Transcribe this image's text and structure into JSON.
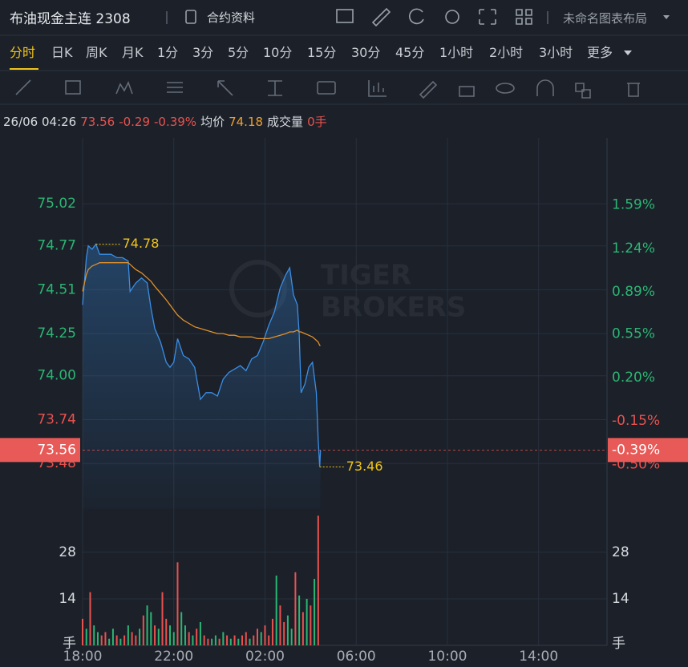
{
  "header": {
    "title": "布油现金主连 2308",
    "contract_info": "合约资料",
    "layout_name": "未命名图表布局"
  },
  "periods": [
    "分时",
    "日K",
    "周K",
    "月K",
    "1分",
    "3分",
    "5分",
    "10分",
    "15分",
    "30分",
    "45分",
    "1小时",
    "2小时",
    "3小时",
    "更多"
  ],
  "info": {
    "time": "26/06 04:26",
    "price": "73.56",
    "change": "-0.29",
    "change_pct": "-0.39%",
    "avg_label": "均价",
    "avg": "74.18",
    "volume_label": "成交量",
    "volume": "0手"
  },
  "watermark": [
    "TIGER",
    "BROKERS"
  ],
  "chart_data": [
    {
      "type": "line",
      "x": [
        "18:00",
        "18:10",
        "18:15",
        "18:25",
        "18:35",
        "18:45",
        "19:00",
        "19:15",
        "19:30",
        "19:45",
        "20:00",
        "20:05",
        "20:20",
        "20:35",
        "20:50",
        "21:00",
        "21:10",
        "21:25",
        "21:40",
        "21:50",
        "22:00",
        "22:10",
        "22:25",
        "22:40",
        "22:55",
        "23:10",
        "23:25",
        "23:40",
        "23:55",
        "00:10",
        "00:25",
        "00:40",
        "00:55",
        "01:10",
        "01:25",
        "01:40",
        "01:55",
        "02:10",
        "02:25",
        "02:40",
        "02:55",
        "03:05",
        "03:15",
        "03:25",
        "03:30",
        "03:35",
        "03:45",
        "03:55",
        "04:05",
        "04:15",
        "04:20",
        "04:24",
        "04:26"
      ],
      "series": [
        {
          "color": "#3a8ee6",
          "values": [
            74.42,
            74.7,
            74.77,
            74.75,
            74.78,
            74.72,
            74.72,
            74.72,
            74.7,
            74.7,
            74.68,
            74.5,
            74.55,
            74.58,
            74.55,
            74.4,
            74.28,
            74.2,
            74.08,
            74.05,
            74.08,
            74.22,
            74.12,
            74.1,
            74.05,
            73.86,
            73.9,
            73.9,
            73.88,
            73.98,
            74.02,
            74.04,
            74.06,
            74.03,
            74.1,
            74.12,
            74.2,
            74.3,
            74.38,
            74.52,
            74.6,
            74.64,
            74.48,
            74.42,
            74.25,
            73.9,
            73.95,
            74.05,
            74.08,
            73.9,
            73.62,
            73.46,
            73.56
          ]
        },
        {
          "color": "#e0902a",
          "values": [
            74.5,
            74.6,
            74.63,
            74.65,
            74.66,
            74.67,
            74.67,
            74.67,
            74.67,
            74.67,
            74.67,
            74.66,
            74.63,
            74.61,
            74.58,
            74.56,
            74.53,
            74.49,
            74.45,
            74.42,
            74.39,
            74.36,
            74.33,
            74.31,
            74.29,
            74.28,
            74.27,
            74.26,
            74.25,
            74.25,
            74.24,
            74.24,
            74.23,
            74.23,
            74.23,
            74.22,
            74.22,
            74.22,
            74.23,
            74.24,
            74.25,
            74.26,
            74.26,
            74.27,
            74.26,
            74.26,
            74.25,
            74.24,
            74.23,
            74.21,
            74.2,
            74.18,
            74.18
          ]
        }
      ],
      "xlim": [
        "18:00",
        "17:00"
      ],
      "xticks": [
        "18:00",
        "22:00",
        "02:00",
        "06:00",
        "10:00",
        "14:00"
      ],
      "ylim": [
        73.21,
        75.41
      ],
      "yticks": [
        73.48,
        73.74,
        {
          "value": 74,
          "label": "74.00"
        },
        74.25,
        74.51,
        74.77,
        75.02
      ],
      "y2lim": [
        -0.86,
        2.13
      ],
      "y2ticks": [
        {
          "value": -0.5,
          "label": "-0.50%"
        },
        {
          "value": -0.15,
          "label": "-0.15%"
        },
        {
          "value": 0.2,
          "label": "0.20%"
        },
        {
          "value": 0.55,
          "label": "0.55%"
        },
        {
          "value": 0.89,
          "label": "0.89%"
        },
        {
          "value": 1.24,
          "label": "1.24%"
        },
        {
          "value": 1.59,
          "label": "1.59%"
        }
      ],
      "grid": true
    },
    {
      "type": "bar",
      "x": [
        "18:00",
        "18:10",
        "18:20",
        "18:30",
        "18:40",
        "18:50",
        "19:00",
        "19:10",
        "19:20",
        "19:30",
        "19:40",
        "19:50",
        "20:00",
        "20:10",
        "20:20",
        "20:30",
        "20:40",
        "20:50",
        "21:00",
        "21:10",
        "21:20",
        "21:30",
        "21:40",
        "21:50",
        "22:00",
        "22:10",
        "22:20",
        "22:30",
        "22:40",
        "22:50",
        "23:00",
        "23:10",
        "23:20",
        "23:30",
        "23:40",
        "23:50",
        "00:00",
        "00:10",
        "00:20",
        "00:30",
        "00:40",
        "00:50",
        "01:00",
        "01:10",
        "01:20",
        "01:30",
        "01:40",
        "01:50",
        "02:00",
        "02:10",
        "02:20",
        "02:30",
        "02:40",
        "02:50",
        "03:00",
        "03:10",
        "03:20",
        "03:30",
        "03:40",
        "03:50",
        "04:00",
        "04:10",
        "04:20"
      ],
      "values": [
        8,
        5,
        16,
        6,
        4,
        3,
        4,
        2,
        5,
        3,
        2,
        3,
        6,
        4,
        3,
        5,
        9,
        12,
        10,
        6,
        5,
        16,
        8,
        6,
        4,
        25,
        10,
        6,
        4,
        3,
        5,
        7,
        3,
        2,
        2,
        3,
        2,
        4,
        3,
        2,
        3,
        2,
        3,
        4,
        2,
        3,
        5,
        4,
        6,
        3,
        8,
        21,
        12,
        7,
        9,
        5,
        22,
        15,
        10,
        14,
        12,
        20,
        39
      ],
      "colors": [
        "#e8524f",
        "#2bb673",
        "#e8524f",
        "#2bb673",
        "#2bb673",
        "#e8524f",
        "#e8524f",
        "#2bb673",
        "#2bb673",
        "#e8524f",
        "#2bb673",
        "#e8524f",
        "#2bb673",
        "#e8524f",
        "#e8524f",
        "#2bb673",
        "#e8524f",
        "#2bb673",
        "#2bb673",
        "#e8524f",
        "#2bb673",
        "#e8524f",
        "#e8524f",
        "#2bb673",
        "#2bb673",
        "#e8524f",
        "#2bb673",
        "#2bb673",
        "#e8524f",
        "#2bb673",
        "#e8524f",
        "#2bb673",
        "#e8524f",
        "#e8524f",
        "#2bb673",
        "#2bb673",
        "#e8524f",
        "#2bb673",
        "#e8524f",
        "#2bb673",
        "#e8524f",
        "#2bb673",
        "#e8524f",
        "#e8524f",
        "#2bb673",
        "#e8524f",
        "#e8524f",
        "#2bb673",
        "#e8524f",
        "#e8524f",
        "#e8524f",
        "#2bb673",
        "#e8524f",
        "#e8524f",
        "#2bb673",
        "#2bb673",
        "#e8524f",
        "#2bb673",
        "#e8524f",
        "#2bb673",
        "#e8524f",
        "#2bb673",
        "#e8524f"
      ],
      "ylim": [
        0,
        41
      ],
      "yticks": [
        28,
        14
      ],
      "y_unit": "手",
      "grid": true
    }
  ]
}
